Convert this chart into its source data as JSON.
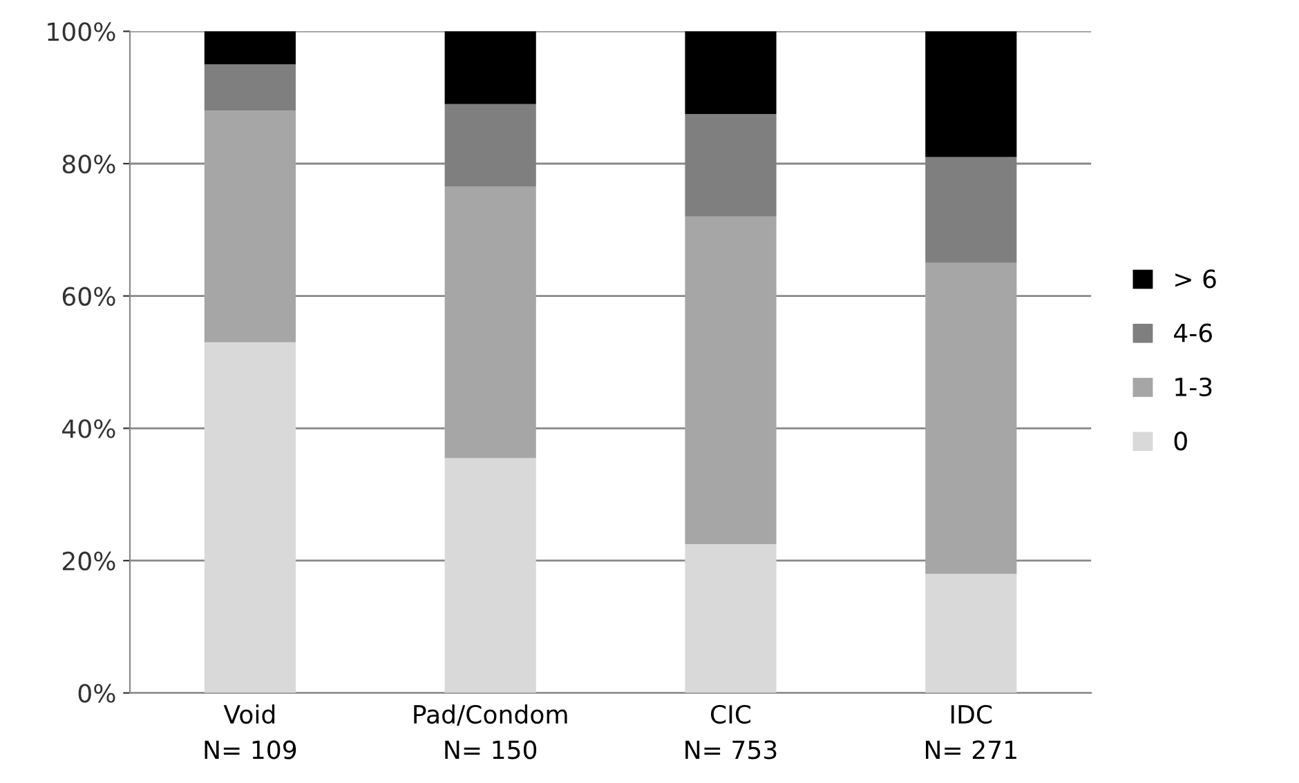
{
  "chart_data": {
    "type": "bar",
    "stacked": true,
    "categories": [
      "Void\nN= 109",
      "Pad/Condom\nN= 150",
      "CIC\nN= 753",
      "IDC\nN= 271"
    ],
    "series": [
      {
        "name": "0",
        "color": "#d9d9d9",
        "values": [
          53,
          35.5,
          22.5,
          18
        ]
      },
      {
        "name": "1-3",
        "color": "#a6a6a6",
        "values": [
          35,
          41,
          49.5,
          47
        ]
      },
      {
        "name": "4-6",
        "color": "#7f7f7f",
        "values": [
          7,
          12.5,
          15.5,
          16
        ]
      },
      {
        "name": "> 6",
        "color": "#000000",
        "values": [
          5,
          11,
          12.5,
          19
        ]
      }
    ],
    "ylim": [
      0,
      100
    ],
    "yticks": [
      {
        "value": 0,
        "label": "0%"
      },
      {
        "value": 20,
        "label": "20%"
      },
      {
        "value": 40,
        "label": "40%"
      },
      {
        "value": 60,
        "label": "60%"
      },
      {
        "value": 80,
        "label": "80%"
      },
      {
        "value": 100,
        "label": "100%"
      }
    ],
    "grid": "y",
    "legend": "right"
  }
}
